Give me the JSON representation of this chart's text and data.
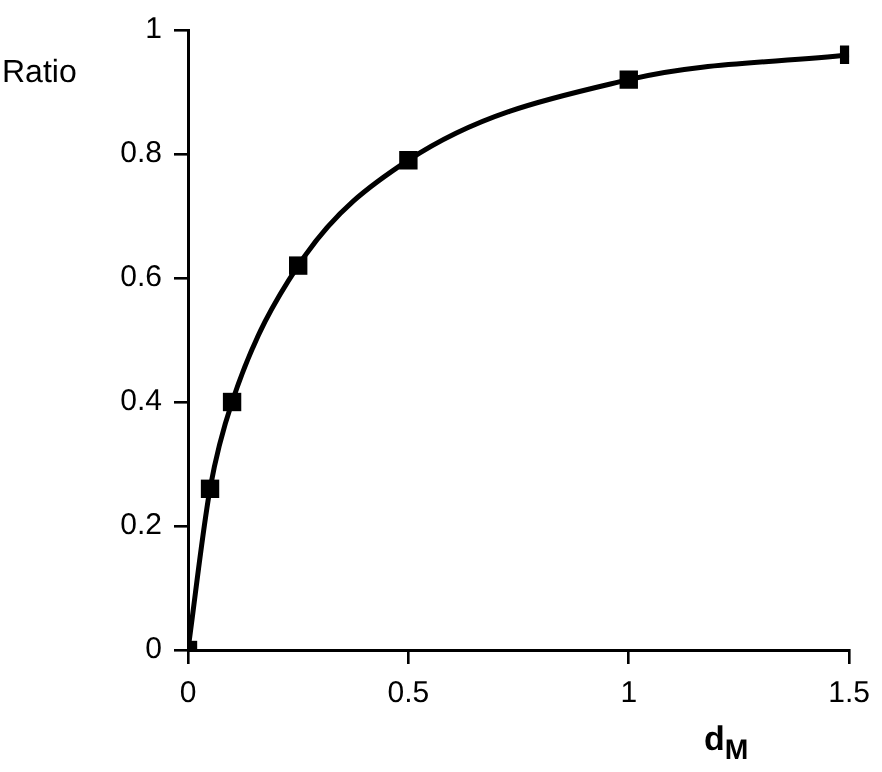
{
  "chart_data": {
    "type": "line",
    "xlabel": "d$_{M}$",
    "ylabel": "Ratio",
    "x": [
      0,
      0.05,
      0.1,
      0.25,
      0.5,
      1,
      1.5
    ],
    "series": [
      {
        "color": "#000000",
        "values": [
          0,
          0.26,
          0.4,
          0.62,
          0.79,
          0.92,
          0.96
        ]
      }
    ],
    "xlim": [
      0,
      1.5
    ],
    "xticks": [
      0,
      0.5,
      1,
      1.5
    ],
    "ylim": [
      0,
      1
    ],
    "yticks": [
      0,
      0.2,
      0.4,
      0.6,
      0.8,
      1
    ],
    "grid": false,
    "legend": false,
    "marker": "square",
    "line_style": "solid"
  }
}
